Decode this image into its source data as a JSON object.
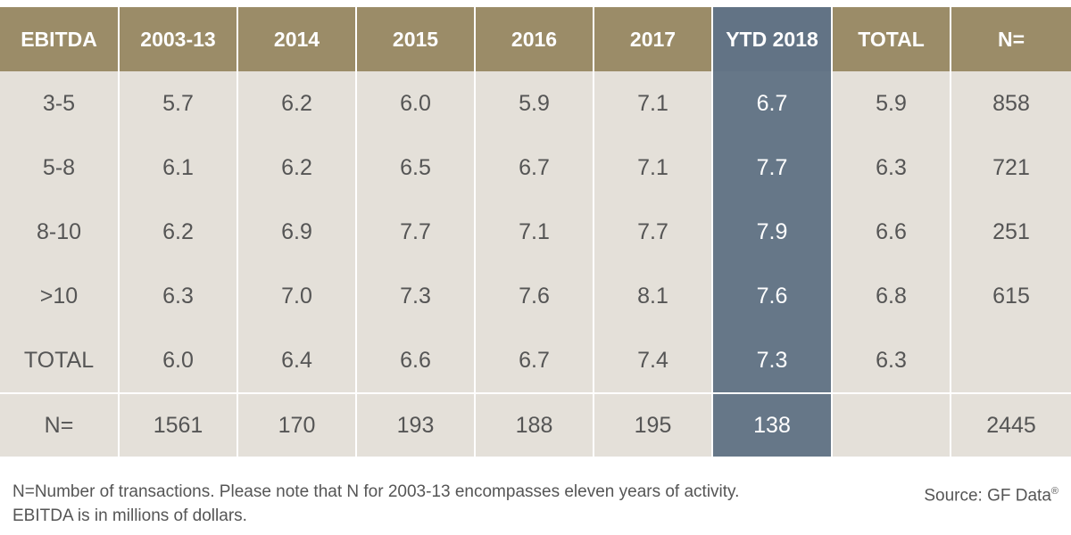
{
  "chart_data": {
    "type": "table",
    "columns": [
      "EBITDA",
      "2003-13",
      "2014",
      "2015",
      "2016",
      "2017",
      "YTD 2018",
      "TOTAL",
      "N="
    ],
    "highlight_column": "YTD 2018",
    "rows": [
      [
        "3-5",
        "5.7",
        "6.2",
        "6.0",
        "5.9",
        "7.1",
        "6.7",
        "5.9",
        "858"
      ],
      [
        "5-8",
        "6.1",
        "6.2",
        "6.5",
        "6.7",
        "7.1",
        "7.7",
        "6.3",
        "721"
      ],
      [
        "8-10",
        "6.2",
        "6.9",
        "7.7",
        "7.1",
        "7.7",
        "7.9",
        "6.6",
        "251"
      ],
      [
        ">10",
        "6.3",
        "7.0",
        "7.3",
        "7.6",
        "8.1",
        "7.6",
        "6.8",
        "615"
      ],
      [
        "TOTAL",
        "6.0",
        "6.4",
        "6.6",
        "6.7",
        "7.4",
        "7.3",
        "6.3",
        ""
      ]
    ],
    "footer_row": [
      "N=",
      "1561",
      "170",
      "193",
      "188",
      "195",
      "138",
      "",
      "2445"
    ],
    "colors": {
      "header": "#9b8c68",
      "highlight": "#667788",
      "body": "#e4e0d9",
      "text": "#555555"
    }
  },
  "notes": {
    "line1": "N=Number of transactions. Please note that N for 2003-13 encompasses eleven years of activity.",
    "line2": "EBITDA is in millions of dollars."
  },
  "source": {
    "label": "Source: GF Data",
    "mark": "®"
  }
}
